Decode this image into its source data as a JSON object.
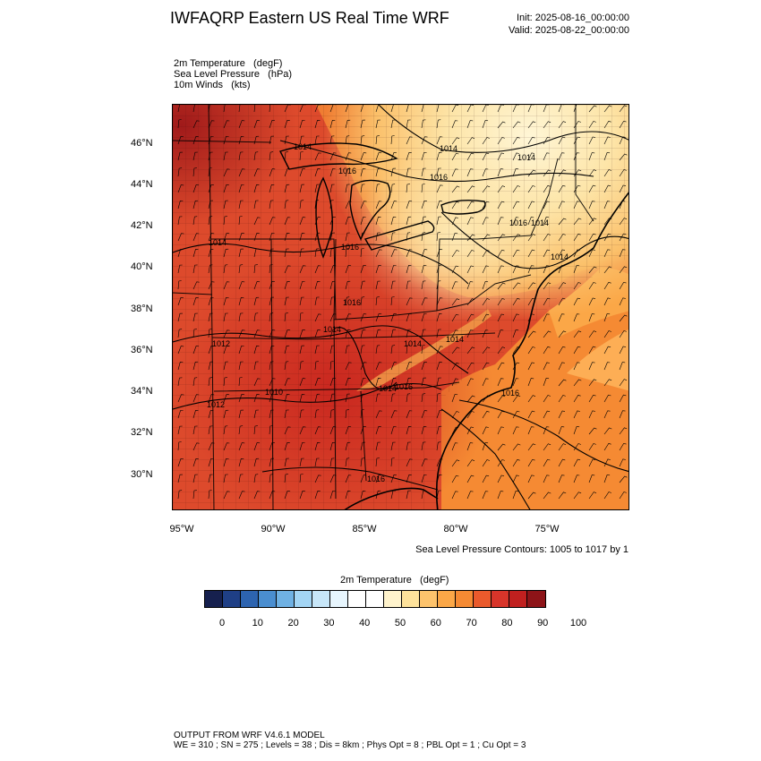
{
  "header": {
    "title": "IWFAQRP Eastern US Real Time WRF",
    "init": "Init: 2025-08-16_00:00:00",
    "valid": "Valid: 2025-08-22_00:00:00"
  },
  "fields": [
    "2m Temperature   (degF)",
    "Sea Level Pressure   (hPa)",
    "10m Winds   (kts)"
  ],
  "map": {
    "lat_ticks": [
      "46°N",
      "44°N",
      "42°N",
      "40°N",
      "38°N",
      "36°N",
      "34°N",
      "32°N",
      "30°N"
    ],
    "lon_ticks": [
      "95°W",
      "90°W",
      "85°W",
      "80°W",
      "75°W"
    ],
    "isobar_labels": [
      "1014",
      "1016",
      "1014",
      "1016",
      "1016",
      "1014",
      "1016",
      "1014",
      "1016",
      "1014",
      "1012",
      "1014",
      "1014",
      "1016",
      "1014",
      "1012",
      "1010",
      "1016",
      "1016",
      "1014",
      "1014"
    ],
    "slp_note": "Sea Level Pressure Contours: 1005 to 1017 by 1"
  },
  "colorbar": {
    "title": "2m Temperature   (degF)",
    "colors": [
      "#16204e",
      "#1f3f86",
      "#2d64b0",
      "#4a8ed0",
      "#6fb1e3",
      "#a3d5f4",
      "#c7e6f8",
      "#e7f5fd",
      "#ffffff",
      "#ffffff",
      "#fff3cc",
      "#fee29b",
      "#fdc36c",
      "#fba747",
      "#f58a33",
      "#ea5a2c",
      "#d8352a",
      "#c0201f",
      "#8d1418"
    ],
    "labels": [
      "0",
      "10",
      "20",
      "30",
      "40",
      "50",
      "60",
      "70",
      "80",
      "90",
      "100"
    ]
  },
  "footer": {
    "line1": "OUTPUT FROM WRF V4.6.1 MODEL",
    "line2": "WE = 310 ; SN = 275 ; Levels = 38 ; Dis = 8km ; Phys Opt = 8 ; PBL Opt = 1 ; Cu Opt = 3"
  }
}
